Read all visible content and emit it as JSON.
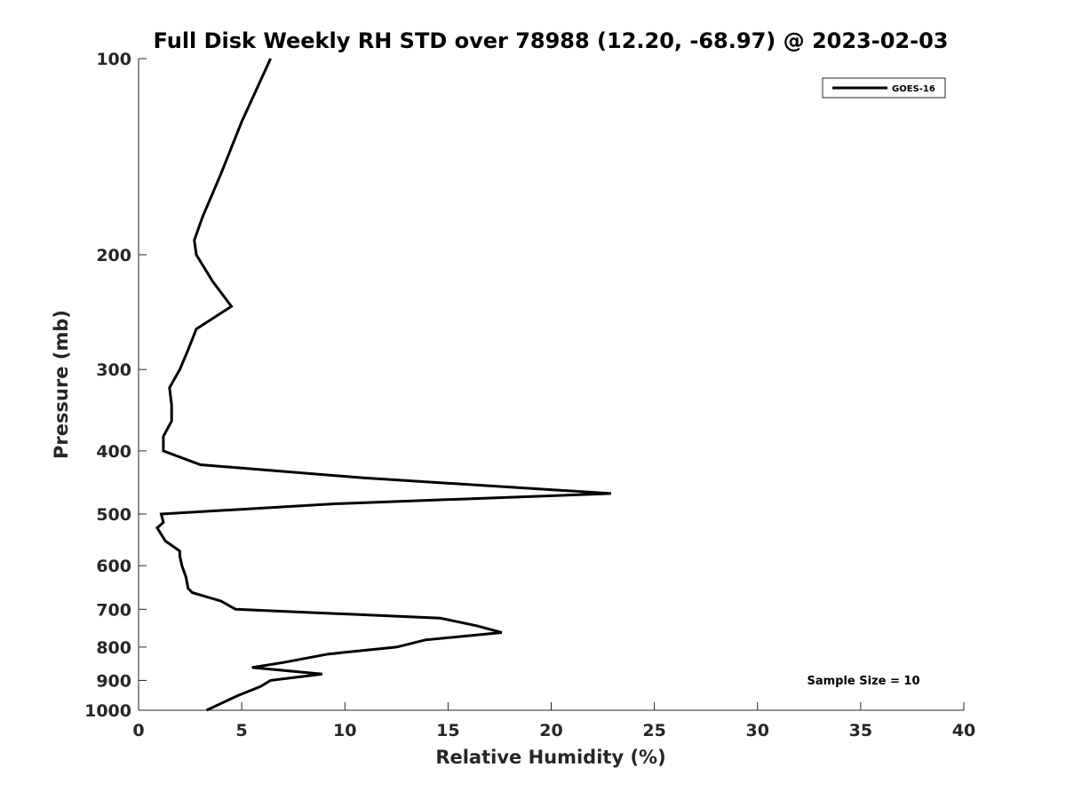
{
  "chart_data": {
    "type": "line",
    "title": "Full Disk Weekly RH STD over 78988 (12.20, -68.97) @ 2023-02-03",
    "xlabel": "Relative Humidity (%)",
    "ylabel": "Pressure (mb)",
    "xlim": [
      0,
      40
    ],
    "ylim": [
      100,
      1000
    ],
    "yscale": "log",
    "y_inverted": true,
    "xticks": [
      0,
      5,
      10,
      15,
      20,
      25,
      30,
      35,
      40
    ],
    "yticks": [
      100,
      200,
      300,
      400,
      500,
      600,
      700,
      800,
      900,
      1000
    ],
    "grid": false,
    "legend_position": "top-right",
    "annotation": "Sample Size = 10",
    "series": [
      {
        "name": "GOES-16",
        "color": "#000000",
        "points": [
          [
            6.4,
            100
          ],
          [
            5.0,
            125
          ],
          [
            4.0,
            150
          ],
          [
            3.1,
            175
          ],
          [
            2.7,
            190
          ],
          [
            2.8,
            200
          ],
          [
            3.6,
            220
          ],
          [
            4.5,
            240
          ],
          [
            2.8,
            260
          ],
          [
            2.4,
            280
          ],
          [
            2.0,
            300
          ],
          [
            1.5,
            320
          ],
          [
            1.6,
            340
          ],
          [
            1.6,
            360
          ],
          [
            1.2,
            380
          ],
          [
            1.2,
            400
          ],
          [
            3.0,
            420
          ],
          [
            10.9,
            440
          ],
          [
            22.9,
            465
          ],
          [
            9.6,
            482
          ],
          [
            1.1,
            500
          ],
          [
            1.2,
            515
          ],
          [
            0.9,
            525
          ],
          [
            1.3,
            550
          ],
          [
            2.0,
            570
          ],
          [
            2.0,
            580
          ],
          [
            2.1,
            600
          ],
          [
            2.3,
            625
          ],
          [
            2.4,
            650
          ],
          [
            2.6,
            660
          ],
          [
            4.0,
            680
          ],
          [
            4.7,
            700
          ],
          [
            14.6,
            722
          ],
          [
            16.4,
            742
          ],
          [
            17.6,
            760
          ],
          [
            13.9,
            780
          ],
          [
            12.5,
            800
          ],
          [
            9.2,
            820
          ],
          [
            7.0,
            845
          ],
          [
            5.5,
            860
          ],
          [
            8.9,
            880
          ],
          [
            6.4,
            900
          ],
          [
            5.9,
            920
          ],
          [
            4.8,
            950
          ],
          [
            3.3,
            1000
          ]
        ]
      }
    ]
  }
}
